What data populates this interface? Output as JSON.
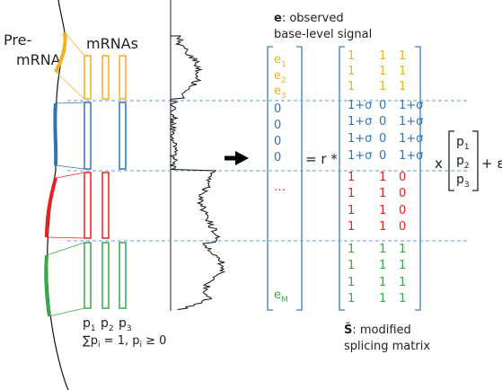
{
  "pre_mrna": [
    "Pre-",
    "mRNA"
  ],
  "mrnas": "mRNAs",
  "isoform_labels": [
    {
      "base": "p",
      "sub": "1"
    },
    {
      "base": "p",
      "sub": "2"
    },
    {
      "base": "p",
      "sub": "3"
    }
  ],
  "constraint": [
    "∑p",
    "i",
    " = 1, p",
    "i",
    " ≥ 0"
  ],
  "signal_caption": {
    "symbol": "e",
    "text": ": observed",
    "line2": "base-level signal"
  },
  "groups": [
    {
      "color": "#f0b020",
      "e": [
        {
          "base": "e",
          "sub": "1"
        },
        {
          "base": "e",
          "sub": "2"
        },
        {
          "base": "e",
          "sub": "3"
        }
      ],
      "rows": [
        [
          "1",
          "1",
          "1"
        ],
        [
          "1",
          "1",
          "1"
        ],
        [
          "1",
          "1",
          "1"
        ]
      ]
    },
    {
      "color": "#2e75b6",
      "e": [
        {
          "base": "0"
        },
        {
          "base": "0"
        },
        {
          "base": "0"
        },
        {
          "base": "0"
        }
      ],
      "rows": [
        [
          "1+σ",
          "0",
          "1+σ"
        ],
        [
          "1+σ",
          "0",
          "1+σ"
        ],
        [
          "1+σ",
          "0",
          "1+σ"
        ],
        [
          "1+σ",
          "0",
          "1+σ"
        ]
      ]
    },
    {
      "color": "#e8201f",
      "e": [
        {
          "base": "…"
        }
      ],
      "rows": [
        [
          "1",
          "1",
          "0"
        ],
        [
          "1",
          "1",
          "0"
        ],
        [
          "1",
          "1",
          "0"
        ],
        [
          "1",
          "1",
          "0"
        ]
      ]
    },
    {
      "color": "#3aa84a",
      "e": [
        {
          "base": "e",
          "sub": "M"
        }
      ],
      "rows": [
        [
          "1",
          "1",
          "1"
        ],
        [
          "1",
          "1",
          "1"
        ],
        [
          "1",
          "1",
          "1"
        ],
        [
          "1",
          "1",
          "1"
        ]
      ]
    }
  ],
  "equals": "= r *",
  "times": "x",
  "p_vector": [
    {
      "base": "p",
      "sub": "1"
    },
    {
      "base": "p",
      "sub": "2"
    },
    {
      "base": "p",
      "sub": "3"
    }
  ],
  "plus_error": "+ ε",
  "matrix_caption": {
    "symbol": "Ŝ",
    "text": ": modified",
    "line2": "splicing matrix"
  }
}
